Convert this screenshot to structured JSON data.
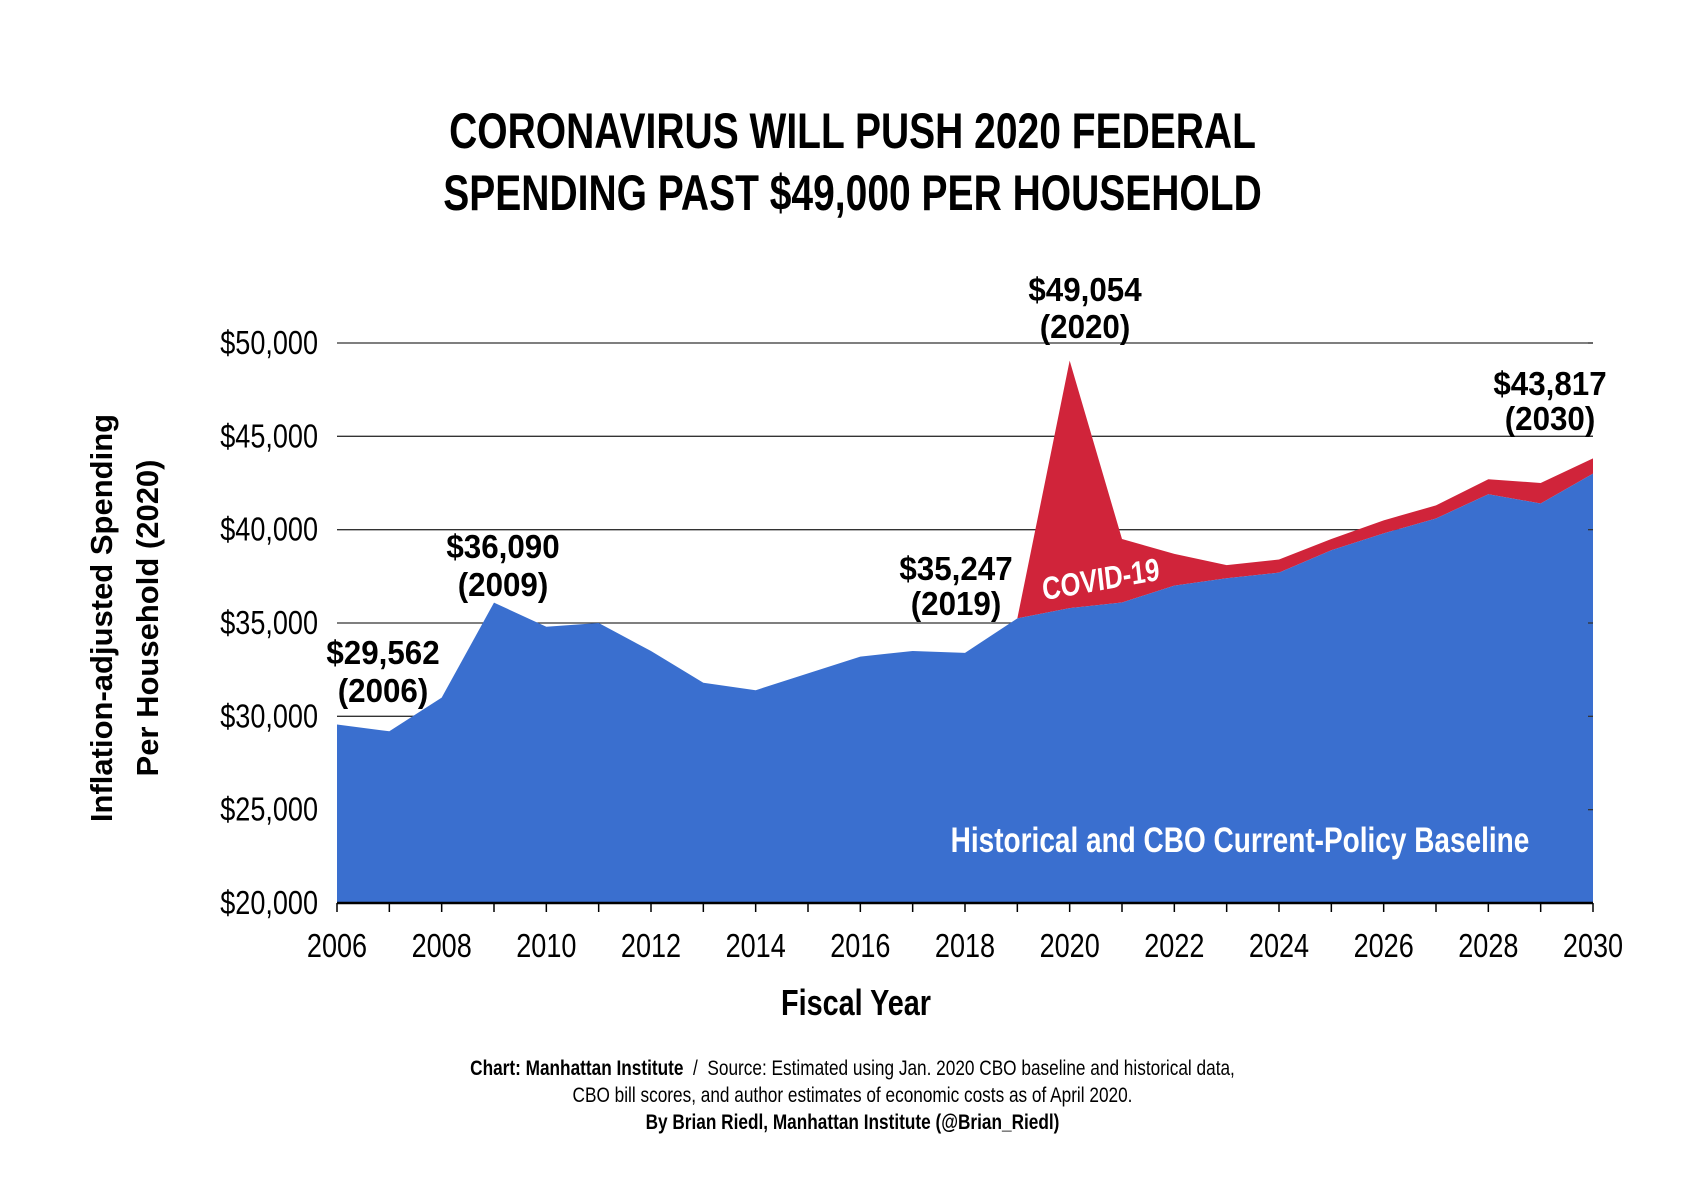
{
  "title": {
    "line1": "CORONAVIRUS WILL PUSH 2020 FEDERAL",
    "line2": "SPENDING PAST $49,000 PER HOUSEHOLD"
  },
  "footer": {
    "chart_credit": "Chart: Manhattan Institute",
    "separator": "/",
    "source_line1": "Source: Estimated using Jan. 2020 CBO baseline and historical data,",
    "source_line2": "CBO bill scores, and author estimates of economic costs as of April 2020.",
    "byline": "By Brian Riedl, Manhattan Institute (@Brian_Riedl)"
  },
  "chart_data": {
    "type": "area",
    "stacked": true,
    "title": "CORONAVIRUS WILL PUSH 2020 FEDERAL SPENDING PAST $49,000 PER HOUSEHOLD",
    "xlabel": "Fiscal Year",
    "ylabel_line1": "Inflation-adjusted Spending",
    "ylabel_line2": "Per Household (2020)",
    "xlim": [
      2006,
      2030
    ],
    "ylim": [
      20000,
      50000
    ],
    "x_ticks": [
      "2006",
      "2008",
      "2010",
      "2012",
      "2014",
      "2016",
      "2018",
      "2020",
      "2022",
      "2024",
      "2026",
      "2028",
      "2030"
    ],
    "y_ticks": [
      "$20,000",
      "$25,000",
      "$30,000",
      "$35,000",
      "$40,000",
      "$45,000",
      "$50,000"
    ],
    "grid": true,
    "x": [
      2006,
      2007,
      2008,
      2009,
      2010,
      2011,
      2012,
      2013,
      2014,
      2015,
      2016,
      2017,
      2018,
      2019,
      2020,
      2021,
      2022,
      2023,
      2024,
      2025,
      2026,
      2027,
      2028,
      2029,
      2030
    ],
    "series": [
      {
        "name": "Historical and CBO Current-Policy Baseline",
        "color": "#3a6fcf",
        "values": [
          29562,
          29200,
          31000,
          36090,
          34800,
          35000,
          33500,
          31800,
          31400,
          32300,
          33200,
          33500,
          33400,
          35247,
          35800,
          36100,
          37000,
          37400,
          37700,
          38900,
          39800,
          40600,
          41900,
          41400,
          43000
        ]
      },
      {
        "name": "COVID-19",
        "color": "#d0243a",
        "total_values": [
          null,
          null,
          null,
          null,
          null,
          null,
          null,
          null,
          null,
          null,
          null,
          null,
          null,
          35247,
          49054,
          39500,
          38700,
          38100,
          38400,
          39500,
          40500,
          41300,
          42700,
          42500,
          43817
        ]
      }
    ],
    "annotations": [
      {
        "value": "$29,562",
        "year": "(2006)"
      },
      {
        "value": "$36,090",
        "year": "(2009)"
      },
      {
        "value": "$35,247",
        "year": "(2019)"
      },
      {
        "value": "$49,054",
        "year": "(2020)"
      },
      {
        "value": "$43,817",
        "year": "(2030)"
      }
    ]
  }
}
